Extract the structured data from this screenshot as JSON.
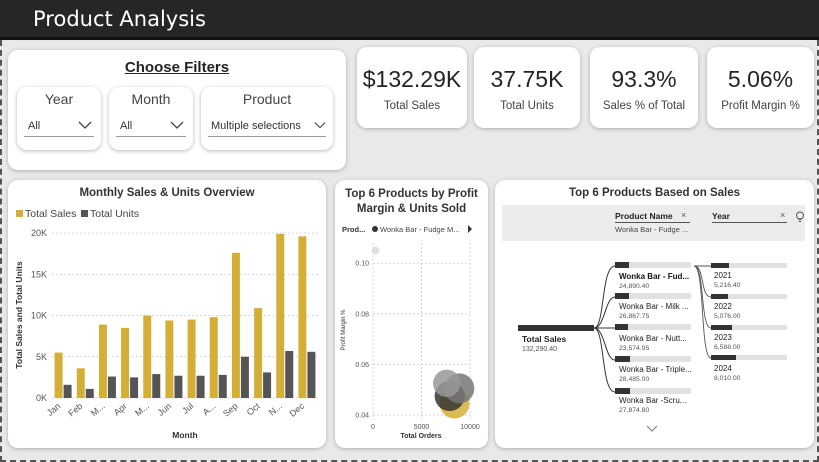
{
  "header": {
    "title": "Product Analysis"
  },
  "filters": {
    "title": "Choose Filters",
    "year": {
      "label": "Year",
      "value": "All"
    },
    "month": {
      "label": "Month",
      "value": "All"
    },
    "product": {
      "label": "Product",
      "value": "Multiple selections"
    }
  },
  "kpis": [
    {
      "value": "$132.29K",
      "caption": "Total Sales"
    },
    {
      "value": "37.75K",
      "caption": "Total Units"
    },
    {
      "value": "93.3%",
      "caption": "Sales % of Total"
    },
    {
      "value": "5.06%",
      "caption": "Profit Margin %"
    }
  ],
  "colors": {
    "sales": "#d4af37",
    "units": "#555555",
    "title_bar": "#262626"
  },
  "monthly_chart": {
    "title": "Monthly Sales & Units Overview",
    "legend_sales": "Total Sales",
    "legend_units": "Total Units",
    "xlabel": "Month",
    "ylabel": "Total Sales and Total Units",
    "y_ticks": [
      "0K",
      "5K",
      "10K",
      "15K",
      "20K"
    ]
  },
  "scatter_chart": {
    "title_line1": "Top 6 Products by Profit",
    "title_line2": "Margin & Units Sold",
    "legend_field": "Prod...",
    "legend_item": "Wonka Bar - Fudge M...",
    "xlabel": "Total Orders",
    "ylabel": "Profit Margin %",
    "y_ticks": [
      "0.04",
      "0.06",
      "0.08",
      "0.10"
    ],
    "x_ticks": [
      "0",
      "5000",
      "10000"
    ]
  },
  "tree_chart": {
    "title": "Top 6 Products Based on Sales",
    "field1": "Product Name",
    "field1_value": "Wonka Bar - Fudge ...",
    "field2": "Year",
    "root": {
      "label": "Total Sales",
      "value": "132,290.40"
    },
    "products": [
      {
        "name": "Wonka Bar - Fud...",
        "value": "24,890.40"
      },
      {
        "name": "Wonka Bar - Milk ...",
        "value": "26,867.75"
      },
      {
        "name": "Wonka Bar - Nutt...",
        "value": "23,574.95"
      },
      {
        "name": "Wonka Bar - Triple...",
        "value": "28,485.00"
      },
      {
        "name": "Wonka Bar -Scru...",
        "value": "27,874.80"
      }
    ],
    "years": [
      {
        "name": "2021",
        "value": "5,216.40"
      },
      {
        "name": "2022",
        "value": "5,076.00"
      },
      {
        "name": "2023",
        "value": "6,588.00"
      },
      {
        "name": "2024",
        "value": "8,010.00"
      }
    ]
  },
  "chart_data": [
    {
      "type": "bar",
      "title": "Monthly Sales & Units Overview",
      "xlabel": "Month",
      "ylabel": "Total Sales and Total Units",
      "ylim": [
        0,
        20000
      ],
      "categories": [
        "Jan",
        "Feb",
        "M...",
        "Apr",
        "M...",
        "Jun",
        "Jul",
        "A...",
        "Sep",
        "Oct",
        "N...",
        "Dec"
      ],
      "series": [
        {
          "name": "Total Sales",
          "values": [
            5500,
            3600,
            8900,
            8500,
            10000,
            9400,
            9500,
            9800,
            17600,
            10900,
            19900,
            19600
          ]
        },
        {
          "name": "Total Units",
          "values": [
            1600,
            1100,
            2600,
            2500,
            2900,
            2700,
            2700,
            2800,
            5000,
            3100,
            5700,
            5600
          ]
        }
      ]
    },
    {
      "type": "scatter",
      "title": "Top 6 Products by Profit Margin & Units Sold",
      "xlabel": "Total Orders",
      "ylabel": "Profit Margin %",
      "xlim": [
        0,
        10000
      ],
      "ylim": [
        0.038,
        0.108
      ],
      "points": [
        {
          "x": 250,
          "y": 0.105,
          "size": 0.15,
          "color": "#dddddd"
        },
        {
          "x": 8400,
          "y": 0.0445,
          "size": 1,
          "color": "#d4af37"
        },
        {
          "x": 7900,
          "y": 0.0475,
          "size": 1,
          "color": "#333333"
        },
        {
          "x": 8900,
          "y": 0.0505,
          "size": 1,
          "color": "#777777"
        },
        {
          "x": 7600,
          "y": 0.0525,
          "size": 0.9,
          "color": "#999999"
        }
      ]
    }
  ]
}
